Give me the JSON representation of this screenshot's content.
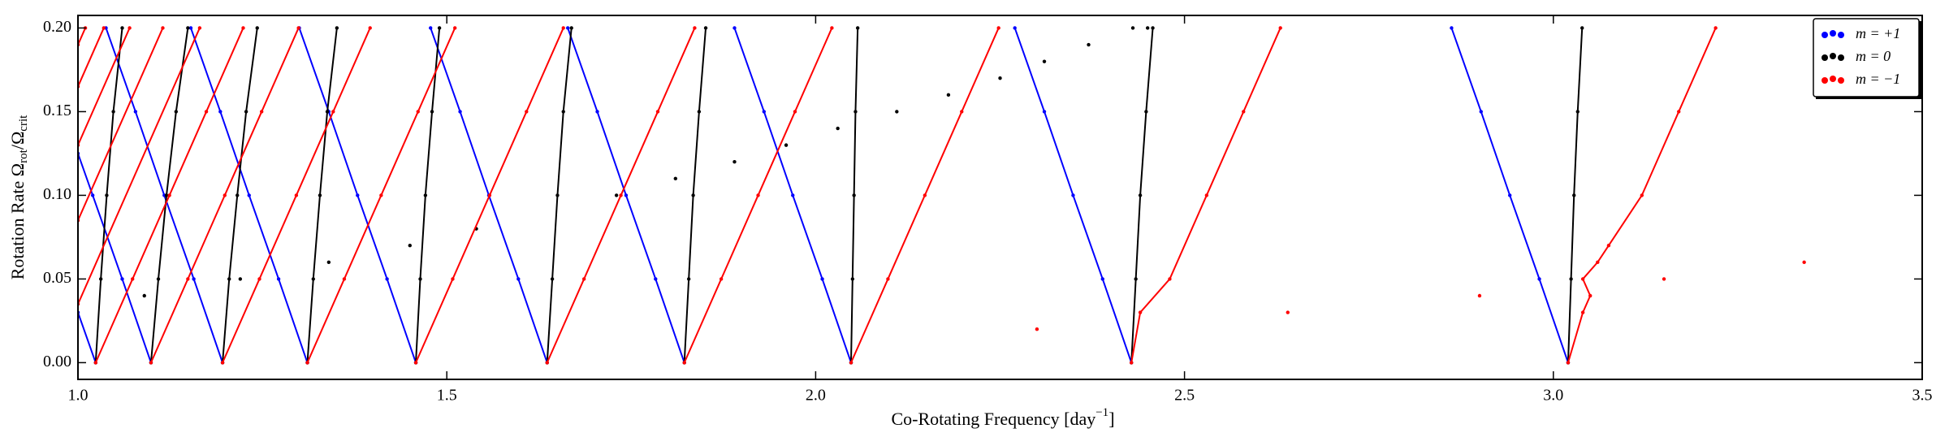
{
  "chart_data": {
    "type": "line",
    "xlabel": [
      "Co-Rotating Frequency [day",
      "−1",
      "]"
    ],
    "ylabel": [
      "Rotation Rate Ω",
      "rot",
      "/Ω",
      "crit"
    ],
    "xlim": [
      1.0,
      3.5
    ],
    "ylim": [
      -0.01,
      0.2075
    ],
    "xticks": [
      {
        "value": 1.0,
        "label": "1.0"
      },
      {
        "value": 1.5,
        "label": "1.5"
      },
      {
        "value": 2.0,
        "label": "2.0"
      },
      {
        "value": 2.5,
        "label": "2.5"
      },
      {
        "value": 3.0,
        "label": "3.0"
      },
      {
        "value": 3.5,
        "label": "3.5"
      }
    ],
    "yticks": [
      {
        "value": 0,
        "label": "0.00"
      },
      {
        "value": 0.05,
        "label": "0.05"
      },
      {
        "value": 0.1,
        "label": "0.10"
      },
      {
        "value": 0.15,
        "label": "0.15"
      },
      {
        "value": 0.2,
        "label": "0.20"
      }
    ],
    "legend": "upper right",
    "series": [
      {
        "name": "m = +1",
        "color": "#0000ff",
        "x": [
          1.024,
          1.0,
          null,
          1.099,
          1.06,
          1.02,
          1.0,
          null,
          1.196,
          1.157,
          1.117,
          1.078,
          1.038,
          null,
          1.311,
          1.272,
          1.232,
          1.193,
          1.153,
          null,
          1.458,
          1.419,
          1.379,
          1.34,
          1.3,
          null,
          1.636,
          1.597,
          1.557,
          1.518,
          1.478,
          null,
          1.822,
          1.783,
          1.743,
          1.704,
          1.664,
          null,
          2.048,
          2.009,
          1.969,
          1.93,
          1.89,
          null,
          2.428,
          2.389,
          2.349,
          2.31,
          2.27,
          null,
          3.02,
          2.981,
          2.941,
          2.902,
          2.862
        ],
        "values": [
          0,
          0.03,
          null,
          0,
          0.05,
          0.1,
          0.125,
          null,
          0,
          0.05,
          0.1,
          0.15,
          0.2,
          null,
          0,
          0.05,
          0.1,
          0.15,
          0.2,
          null,
          0,
          0.05,
          0.1,
          0.15,
          0.2,
          null,
          0,
          0.05,
          0.1,
          0.15,
          0.2,
          null,
          0,
          0.05,
          0.1,
          0.15,
          0.2,
          null,
          0,
          0.05,
          0.1,
          0.15,
          0.2,
          null,
          0,
          0.05,
          0.1,
          0.15,
          0.2,
          null,
          0,
          0.05,
          0.1,
          0.15,
          0.2
        ]
      },
      {
        "name": "m = 0",
        "color": "#000000",
        "x": [
          1.024,
          1.031,
          1.039,
          1.048,
          1.06,
          null,
          1.099,
          1.109,
          1.12,
          1.133,
          1.149,
          null,
          1.196,
          1.205,
          1.216,
          1.228,
          1.243,
          null,
          1.311,
          1.319,
          1.328,
          1.338,
          1.351,
          null,
          1.458,
          1.464,
          1.471,
          1.48,
          1.49,
          null,
          1.636,
          1.643,
          1.65,
          1.658,
          1.669,
          null,
          1.822,
          1.828,
          1.834,
          1.842,
          1.851,
          null,
          2.048,
          2.05,
          2.052,
          2.054,
          2.057,
          null,
          2.428,
          2.434,
          2.44,
          2.448,
          2.457,
          null,
          3.02,
          3.024,
          3.028,
          3.033,
          3.039,
          null,
          1.09,
          null,
          1.22,
          null,
          1.34,
          null,
          1.45,
          null,
          1.54,
          null,
          1.73,
          null,
          1.81,
          null,
          1.89,
          null,
          1.96,
          null,
          2.03,
          null,
          2.11,
          null,
          2.18,
          null,
          2.25,
          null,
          2.31,
          null,
          2.37,
          null,
          2.43,
          null,
          2.45
        ],
        "values": [
          0,
          0.05,
          0.1,
          0.15,
          0.2,
          null,
          0,
          0.05,
          0.1,
          0.15,
          0.2,
          null,
          0,
          0.05,
          0.1,
          0.15,
          0.2,
          null,
          0,
          0.05,
          0.1,
          0.15,
          0.2,
          null,
          0,
          0.05,
          0.1,
          0.15,
          0.2,
          null,
          0,
          0.05,
          0.1,
          0.15,
          0.2,
          null,
          0,
          0.05,
          0.1,
          0.15,
          0.2,
          null,
          0,
          0.05,
          0.1,
          0.15,
          0.2,
          null,
          0,
          0.05,
          0.1,
          0.15,
          0.2,
          null,
          0,
          0.05,
          0.1,
          0.15,
          0.2,
          null,
          0.04,
          null,
          0.05,
          null,
          0.06,
          null,
          0.07,
          null,
          0.08,
          null,
          0.1,
          null,
          0.11,
          null,
          0.12,
          null,
          0.13,
          null,
          0.14,
          null,
          0.15,
          null,
          0.16,
          null,
          0.17,
          null,
          0.18,
          null,
          0.19,
          null,
          0.2,
          null,
          0.2
        ]
      },
      {
        "name": "m = −1",
        "color": "#ff0000",
        "x": [
          1.0,
          1.165,
          null,
          1.0,
          1.115,
          null,
          1.0,
          1.07,
          null,
          1.0,
          1.035,
          null,
          1.0,
          1.01,
          null,
          1.024,
          1.074,
          1.124,
          1.174,
          1.224,
          null,
          1.099,
          1.149,
          1.199,
          1.249,
          1.299,
          null,
          1.196,
          1.246,
          1.296,
          1.346,
          1.396,
          null,
          1.311,
          1.361,
          1.411,
          1.461,
          1.511,
          null,
          1.458,
          1.508,
          1.558,
          1.608,
          1.658,
          null,
          1.636,
          1.686,
          1.736,
          1.786,
          1.836,
          null,
          1.822,
          1.872,
          1.922,
          1.972,
          2.022,
          null,
          2.048,
          2.098,
          2.148,
          2.198,
          2.248,
          null,
          2.428,
          2.44,
          2.48,
          2.53,
          2.58,
          2.63,
          null,
          3.02,
          3.04,
          3.05,
          3.04,
          3.06,
          3.075,
          3.12,
          3.17,
          3.22,
          null,
          2.3,
          null,
          2.64,
          null,
          2.9,
          null,
          3.15,
          null,
          3.34
        ],
        "values": [
          0.035,
          0.2,
          null,
          0.085,
          0.2,
          null,
          0.13,
          0.2,
          null,
          0.165,
          0.2,
          null,
          0.19,
          0.2,
          null,
          0,
          0.05,
          0.1,
          0.15,
          0.2,
          null,
          0,
          0.05,
          0.1,
          0.15,
          0.2,
          null,
          0,
          0.05,
          0.1,
          0.15,
          0.2,
          null,
          0,
          0.05,
          0.1,
          0.15,
          0.2,
          null,
          0,
          0.05,
          0.1,
          0.15,
          0.2,
          null,
          0,
          0.05,
          0.1,
          0.15,
          0.2,
          null,
          0,
          0.05,
          0.1,
          0.15,
          0.2,
          null,
          0,
          0.05,
          0.1,
          0.15,
          0.2,
          null,
          0,
          0.03,
          0.05,
          0.1,
          0.15,
          0.2,
          null,
          0,
          0.03,
          0.04,
          0.05,
          0.06,
          0.07,
          0.1,
          0.15,
          0.2,
          null,
          0.02,
          null,
          0.03,
          null,
          0.04,
          null,
          0.05,
          null,
          0.06
        ]
      }
    ]
  }
}
